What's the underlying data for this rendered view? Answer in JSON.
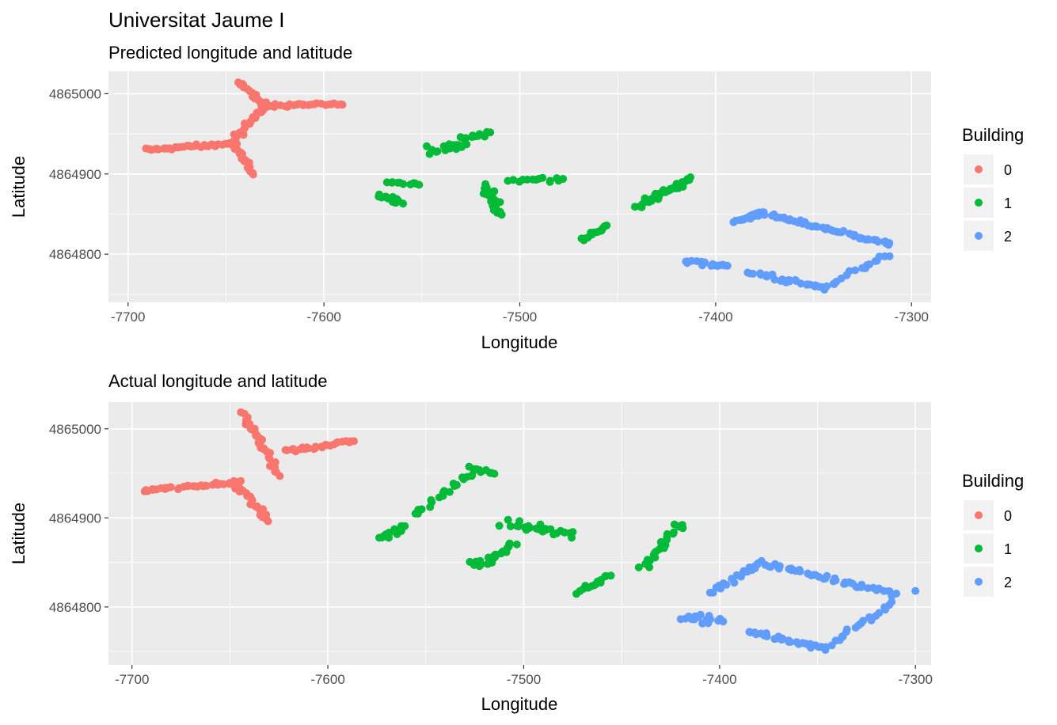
{
  "title": "Universitat Jaume I",
  "colors": {
    "0": "#F8766D",
    "1": "#00BA38",
    "2": "#619CFF",
    "panel": "#EBEBEB",
    "grid": "#FFFFFF"
  },
  "chart_data": [
    {
      "type": "scatter",
      "subtitle": "Predicted longitude and latitude",
      "xlabel": "Longitude",
      "ylabel": "Latitude",
      "xlim": [
        -7710,
        -7290
      ],
      "ylim": [
        4864740,
        4865028
      ],
      "x_ticks": [
        -7700,
        -7600,
        -7500,
        -7400,
        -7300
      ],
      "y_ticks": [
        4864800,
        4864900,
        4865000
      ],
      "grid": true,
      "legend": {
        "title": "Building",
        "position": "right",
        "entries": [
          "0",
          "1",
          "2"
        ]
      },
      "segments": [
        {
          "building": "0",
          "x0": -7691,
          "y0": 4864930,
          "x1": -7645,
          "y1": 4864938,
          "n": 34,
          "jx": 2,
          "jy": 3
        },
        {
          "building": "0",
          "x0": -7648,
          "y0": 4864936,
          "x1": -7636,
          "y1": 4864972,
          "n": 22,
          "jx": 3,
          "jy": 4
        },
        {
          "building": "0",
          "x0": -7636,
          "y0": 4864972,
          "x1": -7628,
          "y1": 4864988,
          "n": 8,
          "jx": 2,
          "jy": 3
        },
        {
          "building": "0",
          "x0": -7643,
          "y0": 4865015,
          "x1": -7632,
          "y1": 4864988,
          "n": 16,
          "jx": 2,
          "jy": 3
        },
        {
          "building": "0",
          "x0": -7630,
          "y0": 4864985,
          "x1": -7590,
          "y1": 4864986,
          "n": 26,
          "jx": 2,
          "jy": 3
        },
        {
          "building": "0",
          "x0": -7645,
          "y0": 4864932,
          "x1": -7636,
          "y1": 4864900,
          "n": 16,
          "jx": 2,
          "jy": 3
        },
        {
          "building": "1",
          "x0": -7572,
          "y0": 4864873,
          "x1": -7560,
          "y1": 4864866,
          "n": 12,
          "jx": 2,
          "jy": 4
        },
        {
          "building": "1",
          "x0": -7568,
          "y0": 4864890,
          "x1": -7552,
          "y1": 4864888,
          "n": 10,
          "jx": 2,
          "jy": 3
        },
        {
          "building": "1",
          "x0": -7546,
          "y0": 4864930,
          "x1": -7528,
          "y1": 4864935,
          "n": 16,
          "jx": 4,
          "jy": 8
        },
        {
          "building": "1",
          "x0": -7530,
          "y0": 4864945,
          "x1": -7515,
          "y1": 4864950,
          "n": 12,
          "jx": 3,
          "jy": 5
        },
        {
          "building": "1",
          "x0": -7517,
          "y0": 4864885,
          "x1": -7510,
          "y1": 4864850,
          "n": 24,
          "jx": 4,
          "jy": 8
        },
        {
          "building": "1",
          "x0": -7505,
          "y0": 4864892,
          "x1": -7477,
          "y1": 4864894,
          "n": 14,
          "jx": 3,
          "jy": 4
        },
        {
          "building": "1",
          "x0": -7468,
          "y0": 4864818,
          "x1": -7455,
          "y1": 4864835,
          "n": 14,
          "jx": 2,
          "jy": 4
        },
        {
          "building": "1",
          "x0": -7440,
          "y0": 4864860,
          "x1": -7412,
          "y1": 4864895,
          "n": 36,
          "jx": 4,
          "jy": 7
        },
        {
          "building": "2",
          "x0": -7415,
          "y0": 4864790,
          "x1": -7393,
          "y1": 4864786,
          "n": 18,
          "jx": 3,
          "jy": 5
        },
        {
          "building": "2",
          "x0": -7390,
          "y0": 4864840,
          "x1": -7375,
          "y1": 4864853,
          "n": 18,
          "jx": 2,
          "jy": 3
        },
        {
          "building": "2",
          "x0": -7375,
          "y0": 4864850,
          "x1": -7310,
          "y1": 4864812,
          "n": 50,
          "jx": 3,
          "jy": 3
        },
        {
          "building": "2",
          "x0": -7383,
          "y0": 4864777,
          "x1": -7343,
          "y1": 4864757,
          "n": 28,
          "jx": 3,
          "jy": 4
        },
        {
          "building": "2",
          "x0": -7343,
          "y0": 4864760,
          "x1": -7312,
          "y1": 4864800,
          "n": 18,
          "jx": 3,
          "jy": 4
        }
      ]
    },
    {
      "type": "scatter",
      "subtitle": "Actual longitude and latitude",
      "xlabel": "Longitude",
      "ylabel": "Latitude",
      "xlim": [
        -7712,
        -7292
      ],
      "ylim": [
        4864735,
        4865030
      ],
      "x_ticks": [
        -7700,
        -7600,
        -7500,
        -7400,
        -7300
      ],
      "y_ticks": [
        4864800,
        4864900,
        4865000
      ],
      "grid": true,
      "legend": {
        "title": "Building",
        "position": "right",
        "entries": [
          "0",
          "1",
          "2"
        ]
      },
      "segments": [
        {
          "building": "0",
          "x0": -7695,
          "y0": 4864930,
          "x1": -7645,
          "y1": 4864940,
          "n": 36,
          "jx": 3,
          "jy": 3
        },
        {
          "building": "0",
          "x0": -7643,
          "y0": 4865015,
          "x1": -7632,
          "y1": 4864975,
          "n": 22,
          "jx": 3,
          "jy": 5
        },
        {
          "building": "0",
          "x0": -7632,
          "y0": 4864975,
          "x1": -7625,
          "y1": 4864945,
          "n": 10,
          "jx": 3,
          "jy": 5
        },
        {
          "building": "0",
          "x0": -7622,
          "y0": 4864975,
          "x1": -7587,
          "y1": 4864986,
          "n": 26,
          "jx": 2,
          "jy": 4
        },
        {
          "building": "0",
          "x0": -7648,
          "y0": 4864940,
          "x1": -7630,
          "y1": 4864898,
          "n": 26,
          "jx": 3,
          "jy": 5
        },
        {
          "building": "1",
          "x0": -7573,
          "y0": 4864878,
          "x1": -7560,
          "y1": 4864890,
          "n": 16,
          "jx": 3,
          "jy": 7
        },
        {
          "building": "1",
          "x0": -7555,
          "y0": 4864905,
          "x1": -7525,
          "y1": 4864950,
          "n": 20,
          "jx": 4,
          "jy": 7
        },
        {
          "building": "1",
          "x0": -7528,
          "y0": 4864955,
          "x1": -7515,
          "y1": 4864950,
          "n": 10,
          "jx": 3,
          "jy": 4
        },
        {
          "building": "1",
          "x0": -7525,
          "y0": 4864845,
          "x1": -7505,
          "y1": 4864870,
          "n": 24,
          "jx": 4,
          "jy": 8
        },
        {
          "building": "1",
          "x0": -7510,
          "y0": 4864895,
          "x1": -7475,
          "y1": 4864880,
          "n": 24,
          "jx": 5,
          "jy": 8
        },
        {
          "building": "1",
          "x0": -7472,
          "y0": 4864815,
          "x1": -7455,
          "y1": 4864835,
          "n": 14,
          "jx": 3,
          "jy": 5
        },
        {
          "building": "1",
          "x0": -7440,
          "y0": 4864845,
          "x1": -7418,
          "y1": 4864895,
          "n": 26,
          "jx": 4,
          "jy": 7
        },
        {
          "building": "2",
          "x0": -7418,
          "y0": 4864788,
          "x1": -7398,
          "y1": 4864785,
          "n": 18,
          "jx": 3,
          "jy": 6
        },
        {
          "building": "2",
          "x0": -7405,
          "y0": 4864815,
          "x1": -7380,
          "y1": 4864850,
          "n": 20,
          "jx": 3,
          "jy": 5
        },
        {
          "building": "2",
          "x0": -7380,
          "y0": 4864850,
          "x1": -7310,
          "y1": 4864815,
          "n": 46,
          "jx": 3,
          "jy": 4
        },
        {
          "building": "2",
          "x0": -7385,
          "y0": 4864773,
          "x1": -7345,
          "y1": 4864752,
          "n": 28,
          "jx": 3,
          "jy": 4
        },
        {
          "building": "2",
          "x0": -7345,
          "y0": 4864755,
          "x1": -7312,
          "y1": 4864805,
          "n": 20,
          "jx": 3,
          "jy": 4
        },
        {
          "building": "2",
          "x0": -7300,
          "y0": 4864818,
          "x1": -7300,
          "y1": 4864818,
          "n": 1,
          "jx": 0,
          "jy": 0
        }
      ]
    }
  ]
}
